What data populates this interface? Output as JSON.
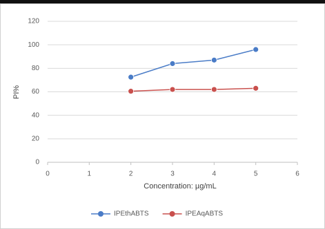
{
  "chart_data": {
    "type": "line",
    "x": [
      2,
      3,
      4,
      5
    ],
    "series": [
      {
        "name": "IPEthABTS",
        "color": "#4a7cc7",
        "values": [
          72.5,
          84,
          87,
          96
        ]
      },
      {
        "name": "IPEAqABTS",
        "color": "#c9504d",
        "values": [
          60.5,
          62,
          62,
          63
        ]
      }
    ],
    "xlim": [
      0,
      6
    ],
    "xticks": [
      0,
      1,
      2,
      3,
      4,
      5,
      6
    ],
    "ylim": [
      0,
      120
    ],
    "yticks": [
      0,
      20,
      40,
      60,
      80,
      100,
      120
    ],
    "xlabel": "Concentration: µg/mL",
    "ylabel": "PI%",
    "grid": true,
    "legend": "bottom"
  }
}
